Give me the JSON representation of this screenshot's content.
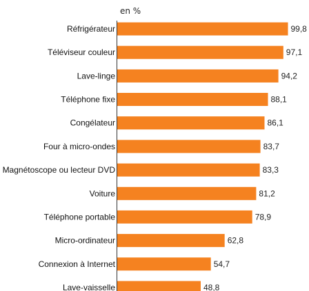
{
  "chart_data": {
    "type": "bar",
    "orientation": "horizontal",
    "unit_label": "en %",
    "categories": [
      "Réfrigérateur",
      "Téléviseur couleur",
      "Lave-linge",
      "Téléphone fixe",
      "Congélateur",
      "Four à micro-ondes",
      "Magnétoscope ou lecteur DVD",
      "Voiture",
      "Téléphone portable",
      "Micro-ordinateur",
      "Connexion à Internet",
      "Lave-vaisselle"
    ],
    "values": [
      99.8,
      97.1,
      94.2,
      88.1,
      86.1,
      83.7,
      83.3,
      81.2,
      78.9,
      62.8,
      54.7,
      48.8
    ],
    "value_labels": [
      "99,8",
      "97,1",
      "94,2",
      "88,1",
      "86,1",
      "83,7",
      "83,3",
      "81,2",
      "78,9",
      "62,8",
      "54,7",
      "48,8"
    ],
    "xlim": [
      0,
      100
    ],
    "bar_color": "#F58220",
    "grid": false,
    "legend": "none"
  }
}
